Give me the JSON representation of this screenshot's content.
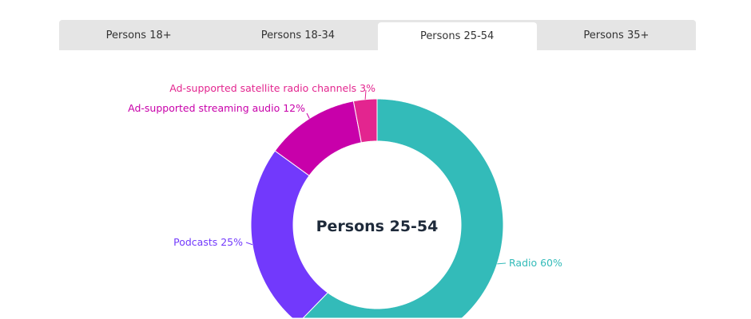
{
  "tabs": [
    {
      "label": "Persons 18+",
      "active": false
    },
    {
      "label": "Persons 18-34",
      "active": false
    },
    {
      "label": "Persons 25-54",
      "active": true
    },
    {
      "label": "Persons 35+",
      "active": false
    }
  ],
  "chart_data": {
    "type": "pie",
    "donut": true,
    "title": "Persons 25-54",
    "slices": [
      {
        "label": "Radio",
        "value": 60,
        "display": "Radio 60%",
        "color": "#33bbb9"
      },
      {
        "label": "Podcasts",
        "value": 25,
        "display": "Podcasts 25%",
        "color": "#7239fc"
      },
      {
        "label": "Ad-supported streaming audio",
        "value": 12,
        "display": "Ad-supported streaming audio 12%",
        "color": "#c800aa"
      },
      {
        "label": "Ad-supported satellite radio channels",
        "value": 3,
        "display": "Ad-supported satellite radio channels 3%",
        "color": "#e3258f"
      }
    ]
  }
}
